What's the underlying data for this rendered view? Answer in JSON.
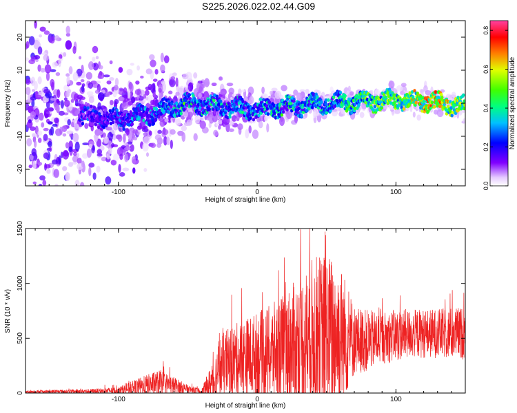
{
  "title": "S225.2026.022.02.44.G09",
  "chart_data": [
    {
      "type": "heatmap",
      "xlabel": "Height of straight line (km)",
      "ylabel": "Frequency (Hz)",
      "xlim": [
        -167,
        150
      ],
      "ylim": [
        -25,
        25
      ],
      "xticks": [
        -100,
        0,
        100
      ],
      "yticks": [
        -20,
        -10,
        0,
        10,
        20
      ],
      "colorbar": {
        "label": "Normalized spectral amplitude",
        "range": [
          0.0,
          0.85
        ],
        "ticks": [
          "0.0",
          "0.2",
          "0.4",
          "0.6",
          "0.8"
        ]
      },
      "ridge": {
        "description_points_x": [
          -125,
          -100,
          -75,
          -50,
          -25,
          0,
          25,
          50,
          75,
          100,
          125,
          150
        ],
        "center_frequency_hz": [
          -4,
          -5,
          -3,
          0,
          -1,
          -2,
          -1,
          0,
          0.5,
          1,
          0.5,
          -1
        ],
        "peak_amplitude": [
          0.25,
          0.3,
          0.35,
          0.45,
          0.4,
          0.4,
          0.45,
          0.45,
          0.55,
          0.6,
          0.8,
          0.6
        ]
      }
    },
    {
      "type": "line",
      "xlabel": "Height of straight line (km)",
      "ylabel": "SNR (10 * v/v)",
      "xlim": [
        -167,
        150
      ],
      "ylim": [
        0,
        1500
      ],
      "xticks": [
        -100,
        0,
        100
      ],
      "yticks": [
        0,
        500,
        1000,
        1500
      ],
      "color": "#ee2222",
      "envelope": {
        "x": [
          -167,
          -120,
          -100,
          -90,
          -80,
          -70,
          -60,
          -50,
          -40,
          -30,
          -28,
          -20,
          -10,
          0,
          10,
          20,
          30,
          40,
          50,
          60,
          70,
          80,
          90,
          100,
          110,
          120,
          130,
          140,
          150
        ],
        "baseline": [
          10,
          15,
          20,
          40,
          60,
          80,
          60,
          30,
          10,
          100,
          200,
          250,
          280,
          300,
          320,
          350,
          400,
          450,
          450,
          450,
          450,
          450,
          480,
          500,
          520,
          520,
          520,
          520,
          520
        ],
        "spread": [
          15,
          25,
          40,
          80,
          120,
          150,
          100,
          50,
          30,
          300,
          350,
          400,
          450,
          500,
          550,
          650,
          750,
          900,
          950,
          850,
          400,
          350,
          300,
          300,
          280,
          280,
          280,
          300,
          300
        ]
      }
    }
  ]
}
